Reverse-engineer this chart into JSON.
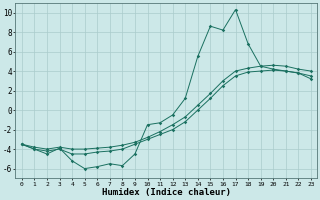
{
  "xlabel": "Humidex (Indice chaleur)",
  "bg_color": "#cce8e8",
  "grid_color": "#aacccc",
  "line_color": "#1a7060",
  "xlim_min": -0.5,
  "xlim_max": 23.5,
  "ylim_min": -7,
  "ylim_max": 11,
  "yticks": [
    -6,
    -4,
    -2,
    0,
    2,
    4,
    6,
    8,
    10
  ],
  "xticks": [
    0,
    1,
    2,
    3,
    4,
    5,
    6,
    7,
    8,
    9,
    10,
    11,
    12,
    13,
    14,
    15,
    16,
    17,
    18,
    19,
    20,
    21,
    22,
    23
  ],
  "curve_spiky_x": [
    0,
    1,
    2,
    3,
    4,
    5,
    6,
    7,
    8,
    9,
    10,
    11,
    12,
    13,
    14,
    15,
    16,
    17,
    18,
    19,
    20,
    21,
    22,
    23
  ],
  "curve_spiky_y": [
    -3.5,
    -4.0,
    -4.5,
    -3.9,
    -5.2,
    -6.0,
    -5.8,
    -5.5,
    -5.7,
    -4.5,
    -1.5,
    -1.3,
    -0.5,
    1.2,
    5.5,
    8.6,
    8.2,
    10.3,
    6.8,
    4.5,
    4.2,
    4.0,
    3.8,
    3.2
  ],
  "curve_upper_x": [
    0,
    1,
    2,
    3,
    4,
    5,
    6,
    7,
    8,
    9,
    10,
    11,
    12,
    13,
    14,
    15,
    16,
    17,
    18,
    19,
    20,
    21,
    22,
    23
  ],
  "curve_upper_y": [
    -3.5,
    -3.8,
    -4.0,
    -3.8,
    -4.0,
    -4.0,
    -3.9,
    -3.8,
    -3.6,
    -3.3,
    -2.8,
    -2.2,
    -1.5,
    -0.7,
    0.5,
    1.7,
    3.0,
    4.0,
    4.3,
    4.5,
    4.6,
    4.5,
    4.2,
    4.0
  ],
  "curve_lower_x": [
    0,
    1,
    2,
    3,
    4,
    5,
    6,
    7,
    8,
    9,
    10,
    11,
    12,
    13,
    14,
    15,
    16,
    17,
    18,
    19,
    20,
    21,
    22,
    23
  ],
  "curve_lower_y": [
    -3.5,
    -4.0,
    -4.2,
    -4.0,
    -4.5,
    -4.5,
    -4.3,
    -4.2,
    -4.0,
    -3.5,
    -3.0,
    -2.5,
    -2.0,
    -1.2,
    0.0,
    1.2,
    2.5,
    3.5,
    3.9,
    4.0,
    4.1,
    4.0,
    3.8,
    3.5
  ]
}
